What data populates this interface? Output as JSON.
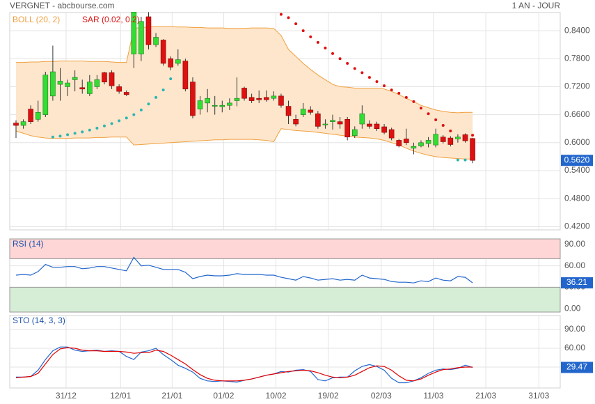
{
  "chart_data": [
    {
      "type": "candlestick",
      "title": "VERGNET - abcbourse.com",
      "subtitle": "1 AN - JOUR",
      "xlim": [
        -0.85,
        73.9
      ],
      "xticks": [
        {
          "value": 6.8,
          "label": "31/12"
        },
        {
          "value": 14.2,
          "label": "12/01"
        },
        {
          "value": 21.2,
          "label": "21/01"
        },
        {
          "value": 28.2,
          "label": "01/02"
        },
        {
          "value": 35.3,
          "label": "10/02"
        },
        {
          "value": 42.4,
          "label": "19/02"
        },
        {
          "value": 49.6,
          "label": "02/03"
        },
        {
          "value": 56.7,
          "label": "11/03"
        },
        {
          "value": 63.8,
          "label": "21/03"
        },
        {
          "value": 71.0,
          "label": "31/03"
        }
      ],
      "ylim": [
        0.413,
        0.879
      ],
      "yticks": [
        {
          "value": 0.84,
          "label": "0.8400"
        },
        {
          "value": 0.78,
          "label": "0.7800"
        },
        {
          "value": 0.72,
          "label": "0.7200"
        },
        {
          "value": 0.66,
          "label": "0.6600"
        },
        {
          "value": 0.6,
          "label": "0.6000"
        },
        {
          "value": 0.54,
          "label": "0.5400"
        },
        {
          "value": 0.48,
          "label": "0.4800"
        },
        {
          "value": 0.42,
          "label": "0.4200"
        }
      ],
      "grid": true,
      "up_color": "#33dd33",
      "down_color": "#dd1111",
      "open": [
        0.642,
        0.637,
        0.672,
        0.65,
        0.66,
        0.7,
        0.725,
        0.72,
        0.735,
        0.718,
        0.705,
        0.72,
        0.75,
        0.75,
        0.72,
        0.708,
        0.79,
        0.79,
        0.87,
        0.81,
        0.82,
        0.78,
        0.77,
        0.775,
        0.73,
        0.672,
        0.685,
        0.678,
        0.677,
        0.68,
        0.69,
        0.717,
        0.697,
        0.695,
        0.697,
        0.695,
        0.7,
        0.678,
        0.65,
        0.66,
        0.67,
        0.662,
        0.638,
        0.645,
        0.645,
        0.65,
        0.615,
        0.64,
        0.64,
        0.64,
        0.634,
        0.628,
        0.605,
        0.608,
        0.588,
        0.593,
        0.598,
        0.595,
        0.612,
        0.61,
        0.608,
        0.617,
        0.609
      ],
      "high": [
        0.648,
        0.65,
        0.68,
        0.69,
        0.752,
        0.808,
        0.76,
        0.735,
        0.755,
        0.735,
        0.745,
        0.745,
        0.752,
        0.755,
        0.725,
        0.712,
        0.88,
        0.87,
        0.88,
        0.835,
        0.822,
        0.785,
        0.8,
        0.78,
        0.74,
        0.7,
        0.715,
        0.7,
        0.69,
        0.695,
        0.74,
        0.72,
        0.705,
        0.712,
        0.712,
        0.71,
        0.705,
        0.69,
        0.66,
        0.685,
        0.678,
        0.668,
        0.65,
        0.66,
        0.655,
        0.655,
        0.635,
        0.68,
        0.648,
        0.645,
        0.64,
        0.632,
        0.608,
        0.63,
        0.6,
        0.605,
        0.612,
        0.63,
        0.616,
        0.614,
        0.618,
        0.62,
        0.61
      ],
      "low": [
        0.61,
        0.63,
        0.64,
        0.645,
        0.655,
        0.69,
        0.69,
        0.7,
        0.71,
        0.705,
        0.7,
        0.715,
        0.725,
        0.715,
        0.705,
        0.7,
        0.76,
        0.775,
        0.8,
        0.805,
        0.765,
        0.755,
        0.765,
        0.71,
        0.652,
        0.66,
        0.665,
        0.66,
        0.665,
        0.67,
        0.678,
        0.69,
        0.685,
        0.685,
        0.688,
        0.69,
        0.675,
        0.64,
        0.635,
        0.655,
        0.66,
        0.63,
        0.63,
        0.628,
        0.63,
        0.605,
        0.61,
        0.63,
        0.63,
        0.625,
        0.618,
        0.605,
        0.59,
        0.595,
        0.575,
        0.59,
        0.59,
        0.59,
        0.598,
        0.592,
        0.6,
        0.6,
        0.556
      ],
      "close": [
        0.637,
        0.645,
        0.645,
        0.665,
        0.745,
        0.752,
        0.732,
        0.728,
        0.74,
        0.715,
        0.73,
        0.735,
        0.73,
        0.722,
        0.71,
        0.703,
        0.88,
        0.86,
        0.81,
        0.826,
        0.77,
        0.762,
        0.778,
        0.715,
        0.658,
        0.69,
        0.695,
        0.68,
        0.68,
        0.685,
        0.695,
        0.695,
        0.69,
        0.692,
        0.692,
        0.7,
        0.68,
        0.658,
        0.64,
        0.672,
        0.665,
        0.635,
        0.64,
        0.648,
        0.64,
        0.612,
        0.628,
        0.662,
        0.635,
        0.63,
        0.622,
        0.61,
        0.593,
        0.6,
        0.592,
        0.6,
        0.605,
        0.618,
        0.602,
        0.596,
        0.612,
        0.604,
        0.562
      ],
      "last_label": "0.5620",
      "last_color": "#2266cc",
      "bollinger": {
        "name": "BOLL (20, 2)",
        "color": "#f0a040",
        "fill": "#fde6cc",
        "upper": [
          0.772,
          0.772,
          0.773,
          0.773,
          0.774,
          0.774,
          0.775,
          0.775,
          0.775,
          0.775,
          0.774,
          0.774,
          0.774,
          0.773,
          0.772,
          0.772,
          0.845,
          0.847,
          0.848,
          0.849,
          0.849,
          0.849,
          0.848,
          0.848,
          0.847,
          0.847,
          0.846,
          0.846,
          0.846,
          0.845,
          0.845,
          0.845,
          0.846,
          0.846,
          0.846,
          0.845,
          0.83,
          0.8,
          0.785,
          0.77,
          0.757,
          0.745,
          0.735,
          0.725,
          0.72,
          0.719,
          0.717,
          0.717,
          0.717,
          0.717,
          0.715,
          0.71,
          0.703,
          0.695,
          0.688,
          0.68,
          0.675,
          0.67,
          0.667,
          0.665,
          0.664,
          0.665,
          0.665
        ],
        "lower": [
          0.625,
          0.62,
          0.615,
          0.612,
          0.61,
          0.609,
          0.609,
          0.609,
          0.61,
          0.61,
          0.61,
          0.611,
          0.611,
          0.612,
          0.612,
          0.612,
          0.595,
          0.596,
          0.597,
          0.598,
          0.599,
          0.6,
          0.601,
          0.602,
          0.603,
          0.604,
          0.605,
          0.606,
          0.606,
          0.607,
          0.607,
          0.607,
          0.607,
          0.606,
          0.605,
          0.602,
          0.63,
          0.628,
          0.626,
          0.625,
          0.624,
          0.622,
          0.62,
          0.618,
          0.616,
          0.614,
          0.612,
          0.611,
          0.61,
          0.608,
          0.605,
          0.6,
          0.595,
          0.588,
          0.582,
          0.577,
          0.573,
          0.57,
          0.568,
          0.567,
          0.566,
          0.565,
          0.565
        ]
      },
      "sar": {
        "name": "SAR (0.02, 0.2)",
        "color": "#dd1111",
        "color_below": "#2bb5b0",
        "values": [
          null,
          null,
          null,
          null,
          null,
          0.612,
          0.614,
          0.617,
          0.62,
          0.623,
          0.627,
          0.631,
          0.636,
          0.641,
          0.647,
          0.653,
          0.66,
          0.67,
          0.683,
          0.697,
          0.713,
          0.737,
          null,
          null,
          null,
          null,
          null,
          null,
          null,
          null,
          null,
          null,
          null,
          null,
          null,
          null,
          0.875,
          0.868,
          0.855,
          0.84,
          0.827,
          0.815,
          0.803,
          0.791,
          0.78,
          0.77,
          0.759,
          0.75,
          0.74,
          0.731,
          0.722,
          0.713,
          0.706,
          0.697,
          0.688,
          0.674,
          0.662,
          0.649,
          0.637,
          0.625,
          0.563,
          0.563,
          0.616
        ]
      }
    },
    {
      "type": "line",
      "title": "RSI (14)",
      "ylim": [
        -4.8,
        97.8
      ],
      "yticks": [
        {
          "value": 90,
          "label": "90.00"
        },
        {
          "value": 60,
          "label": "60.00"
        },
        {
          "value": 30,
          "label": "30.00"
        },
        {
          "value": 0,
          "label": "0.00"
        }
      ],
      "grid": true,
      "overbought": 70,
      "oversold": 30,
      "overbought_color": "#ffd6d6",
      "oversold_color": "#d6edd6",
      "series": [
        {
          "name": "RSI (14)",
          "color": "#2266cc",
          "values": [
            47,
            48,
            47,
            52,
            62,
            58,
            58,
            59,
            59,
            56,
            57,
            59,
            59,
            57,
            55,
            53,
            72,
            60,
            61,
            58,
            55,
            55,
            55,
            51,
            42,
            45,
            47,
            46,
            46,
            47,
            49,
            48,
            48,
            48,
            47,
            47,
            44,
            42,
            40,
            45,
            43,
            40,
            41,
            42,
            40,
            41,
            40,
            47,
            43,
            42,
            41,
            38,
            37,
            37,
            36,
            39,
            38,
            43,
            40,
            39,
            45,
            44,
            36.21
          ]
        }
      ]
    },
    {
      "type": "line",
      "title": "STO (14, 3, 3)",
      "ylim": [
        -3.3,
        112.2
      ],
      "yticks": [
        {
          "value": 90,
          "label": "90.00"
        },
        {
          "value": 60,
          "label": "60.00"
        },
        {
          "value": 30,
          "label": "30.00"
        }
      ],
      "grid": true,
      "series": [
        {
          "name": "%K",
          "color": "#2266cc",
          "values": [
            14,
            14,
            15,
            25,
            42,
            56,
            62,
            62,
            57,
            55,
            56,
            57,
            55,
            56,
            55,
            47,
            42,
            54,
            56,
            60,
            50,
            42,
            33,
            28,
            22,
            12,
            8,
            7,
            8,
            7,
            6,
            9,
            11,
            14,
            17,
            19,
            23,
            22,
            25,
            26,
            23,
            10,
            8,
            13,
            14,
            14,
            24,
            31,
            34,
            31,
            25,
            12,
            5,
            5,
            8,
            13,
            20,
            25,
            27,
            26,
            28,
            33,
            29.47
          ]
        },
        {
          "name": "%D",
          "color": "#e00000",
          "values": [
            13,
            14,
            15,
            20,
            35,
            50,
            59,
            61,
            60,
            57,
            56,
            56,
            55,
            55,
            55,
            54,
            52,
            53,
            53,
            57,
            55,
            49,
            42,
            35,
            26,
            18,
            12,
            9,
            8,
            8,
            8,
            9,
            11,
            14,
            17,
            19,
            21,
            23,
            24,
            25,
            24,
            21,
            17,
            14,
            13,
            14,
            17,
            23,
            29,
            32,
            31,
            25,
            16,
            9,
            8,
            11,
            17,
            22,
            26,
            27,
            29,
            30,
            30
          ]
        }
      ]
    }
  ]
}
